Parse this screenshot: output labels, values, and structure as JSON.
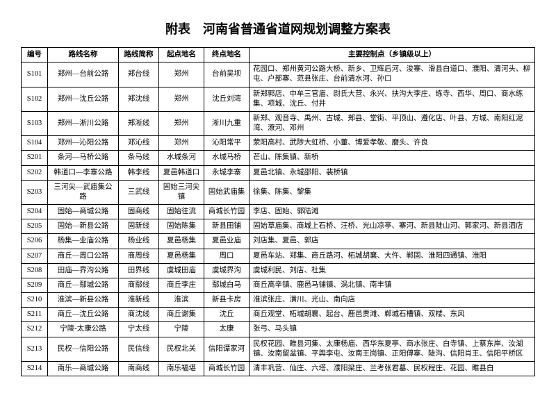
{
  "title": "附表　河南省普通省道网规划调整方案表",
  "columns": [
    "编号",
    "路线名称",
    "路线简称",
    "起点地名",
    "终点地名",
    "主要控制点（乡镇级以上）"
  ],
  "rows": [
    [
      "S101",
      "郑州—台前公路",
      "郑台线",
      "郑州",
      "台前吴坝",
      "花园口、郑州黄河公路大桥、新乡、卫辉后河、浚寨、滑县白道口、濮阳、清河头、柳屯、户部寨、范县张庄、台前清水河、孙口"
    ],
    [
      "S102",
      "郑州—沈丘公路",
      "郑沈线",
      "郑州",
      "沈丘刘湾",
      "新郑郭店、中牟三官庙、尉氏大营、永兴、扶沟大李庄、练寺、西华、周口、商水练集、项城、沈丘、付井"
    ],
    [
      "S103",
      "郑州—淅川公路",
      "郑淅线",
      "郑州",
      "淅川九重",
      "新郑、观音寺、禹州、古城、郏县、堂街、平顶山、遵化店、叶县、方城、南阳红泥湾、潦河、邓州"
    ],
    [
      "S104",
      "郑州—沁阳公路",
      "郑沁线",
      "郑州",
      "沁阳常平",
      "荥阳高村、武陟大虹桥、小董、博爱孝敬、磨头、许良"
    ],
    [
      "S201",
      "条河—马桥公路",
      "条马线",
      "水城条河",
      "水城马桥",
      "芒山、陈集镇、新桥"
    ],
    [
      "S202",
      "韩道口—李寨公路",
      "韩李线",
      "夏邑韩道口",
      "永城李寨",
      "夏邑北镇、永城邵阳、裴桥镇"
    ],
    [
      "S203",
      "三河尖—武庙集公路",
      "三武线",
      "固始三河尖镇",
      "固始武庙集",
      "徐集、陈集、黎集"
    ],
    [
      "S204",
      "固始—商城公路",
      "固商线",
      "固始往流",
      "商城长竹园",
      "李店、固始、郭陆滩"
    ],
    [
      "S205",
      "固始—新县公路",
      "固新线",
      "固始陈集",
      "新县田铺",
      "固始草庙集、商城上石桥、汪桥、光山凉亭、寨河、新县陡山河、郭家河、新县泗店"
    ],
    [
      "S206",
      "杨集—业庙公路",
      "杨业线",
      "夏邑杨集",
      "夏邑业庙",
      "刘店集、夏邑、郭店"
    ],
    [
      "S207",
      "商丘—周口公路",
      "商周线",
      "夏邑杨集",
      "周口",
      "夏邑车站、郑集、商丘路河、柘城胡襄、大仵、郸固、淮阳四通镇、淮阳"
    ],
    [
      "S208",
      "田庙—界沟公路",
      "田界线",
      "虞城田庙",
      "虞城界沟",
      "虞城利民、刘店、杜集"
    ],
    [
      "S209",
      "商丘—鄢城公路",
      "商鄢线",
      "商丘李庄",
      "鄢城白马",
      "商丘高辛镇、鹿邑马铺镇、涡北镇、南丰镇"
    ],
    [
      "S210",
      "淮滨—新县公路",
      "淮新线",
      "淮滨",
      "新县卡房",
      "淮滨张庄、潢川、光山、南向店"
    ],
    [
      "S211",
      "商丘—沈丘公路",
      "商沈线",
      "商丘谢集",
      "沈丘",
      "商丘观堂、柘城胡襄、起台、鹿邑贾滩、郸城石槽镇、双楼、东风"
    ],
    [
      "S212",
      "宁陵-太康公路",
      "宁太线",
      "宁陵",
      "太康",
      "张弓、马头镇"
    ],
    [
      "S213",
      "民权—信阳公路",
      "民信线",
      "民权北关",
      "信阳谭家河",
      "民权花园、睢县河集、太康杨庙、西华东夏亭、商水张庄、白寺镇、上蔡东岸、汝湖镇、汝南留盆镇、平舆李屯、汝南王岗镇、正阳傅寨、陡沟、信阳肖王、信阳平桥区"
    ],
    [
      "S214",
      "南乐—商城公路",
      "南商线",
      "南乐福堪",
      "商城长竹园",
      "清丰巩营、仙庄、六塔、濮阳梁庄、兰考张君墓、民权程庄、花园、睢县白"
    ]
  ]
}
